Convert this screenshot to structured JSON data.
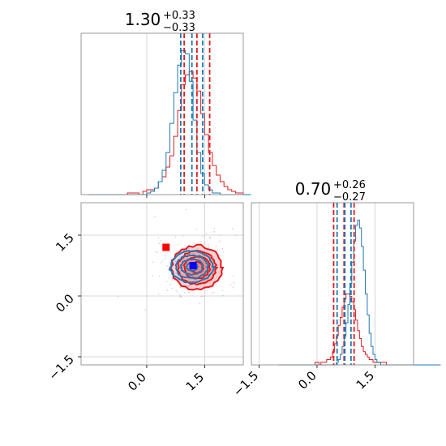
{
  "colors": {
    "red": "#e31a1c",
    "blue": "#1f78b4",
    "fill_red": "#f08080",
    "grid": "#cccccc",
    "marker_red": "#ff0000",
    "marker_blue": "#0000ff"
  },
  "chart_data": [
    {
      "type": "histogram",
      "panel": "top-left",
      "title": "1.30",
      "title_sup": "+0.33",
      "title_sub": "−0.33",
      "xlim": [
        -1.7,
        2.5
      ],
      "grid": true,
      "show_xticklabels": false,
      "bin_start": -1.5,
      "bin_width": 0.1,
      "series": [
        {
          "name": "red",
          "counts": [
            0,
            0,
            0,
            0,
            0,
            0,
            0,
            0,
            0,
            0,
            1,
            1,
            1,
            0,
            2,
            3,
            3,
            4,
            8,
            11,
            17,
            24,
            36,
            52,
            68,
            74,
            76,
            72,
            64,
            50,
            37,
            26,
            18,
            12,
            8,
            5,
            3,
            2,
            1,
            1,
            0,
            0
          ],
          "quantiles": [
            0.97,
            1.3,
            1.63
          ]
        },
        {
          "name": "blue",
          "counts": [
            0,
            0,
            0,
            0,
            0,
            0,
            0,
            0,
            0,
            0,
            0,
            0,
            0,
            0,
            0,
            1,
            2,
            4,
            8,
            15,
            26,
            44,
            63,
            80,
            89,
            87,
            70,
            46,
            26,
            13,
            6,
            3,
            1,
            1,
            0,
            0,
            0,
            0,
            0,
            0,
            0,
            0
          ],
          "quantiles": [
            0.88,
            1.17,
            1.45
          ]
        }
      ]
    },
    {
      "type": "histogram",
      "panel": "bottom-right",
      "title": "0.70",
      "title_sup": "+0.26",
      "title_sub": "−0.27",
      "xlim": [
        -1.7,
        2.5
      ],
      "xticks": [
        -1.5,
        0.0,
        1.5
      ],
      "xtick_labels": [
        "−1.5",
        "0.0",
        "1.5"
      ],
      "grid": true,
      "bin_start": -1.0,
      "bin_width": 0.05,
      "series": [
        {
          "name": "red",
          "counts": [
            0,
            0,
            0,
            0,
            0,
            0,
            0,
            0,
            0,
            0,
            0,
            0,
            0,
            0,
            0,
            0,
            0,
            0,
            0,
            1,
            1,
            0,
            1,
            1,
            1,
            2,
            2,
            3,
            5,
            8,
            11,
            15,
            18,
            22,
            25,
            27,
            27,
            26,
            24,
            21,
            17,
            13,
            10,
            7,
            5,
            4,
            3,
            2,
            2,
            1,
            1,
            1,
            1,
            1,
            1,
            1,
            0,
            0,
            0,
            0,
            0,
            0,
            0,
            0,
            0,
            0,
            0,
            0,
            0,
            0,
            0,
            0,
            0,
            0,
            0,
            0,
            0,
            0,
            0,
            0,
            0,
            0,
            0,
            0
          ],
          "quantiles": [
            0.43,
            0.7,
            0.96
          ]
        },
        {
          "name": "blue",
          "counts": [
            0,
            0,
            0,
            0,
            0,
            0,
            0,
            0,
            0,
            0,
            0,
            0,
            0,
            0,
            0,
            0,
            0,
            0,
            0,
            0,
            0,
            0,
            0,
            0,
            0,
            0,
            0,
            0,
            0,
            0,
            1,
            2,
            4,
            7,
            11,
            16,
            23,
            31,
            39,
            47,
            53,
            55,
            52,
            45,
            36,
            27,
            19,
            12,
            7,
            4,
            2,
            1,
            1,
            0,
            0,
            0,
            0,
            0,
            0,
            0,
            0,
            0,
            0,
            0,
            0,
            0,
            0,
            0,
            0,
            0,
            0,
            0,
            0,
            0,
            0,
            0,
            0,
            0,
            0,
            0,
            0,
            0,
            0,
            0
          ],
          "quantiles": [
            0.52,
            0.72,
            0.88
          ]
        }
      ]
    },
    {
      "type": "scatter",
      "panel": "bottom-left",
      "xlim": [
        -1.7,
        2.5
      ],
      "ylim": [
        -1.7,
        2.3
      ],
      "xticks": [
        0.0,
        1.5
      ],
      "xtick_labels": [
        "0.0",
        "1.5"
      ],
      "yticks": [
        -1.5,
        0.0,
        1.5
      ],
      "ytick_labels": [
        "−1.5",
        "0.0",
        "1.5"
      ],
      "grid": true,
      "series": [
        {
          "name": "red",
          "center": [
            1.3,
            0.7
          ],
          "sigma": [
            0.33,
            0.27
          ],
          "contour_levels": [
            0.5,
            1.0,
            1.5,
            2.0
          ],
          "filled": true
        },
        {
          "name": "blue",
          "center": [
            1.17,
            0.72
          ],
          "sigma": [
            0.28,
            0.19
          ],
          "contour_levels": [
            0.5,
            1.0,
            1.5,
            2.0
          ],
          "filled": false
        }
      ],
      "markers": [
        {
          "name": "red",
          "x": 0.5,
          "y": 1.2,
          "shape": "square"
        },
        {
          "name": "blue",
          "x": 1.2,
          "y": 0.75,
          "shape": "square"
        }
      ]
    }
  ]
}
